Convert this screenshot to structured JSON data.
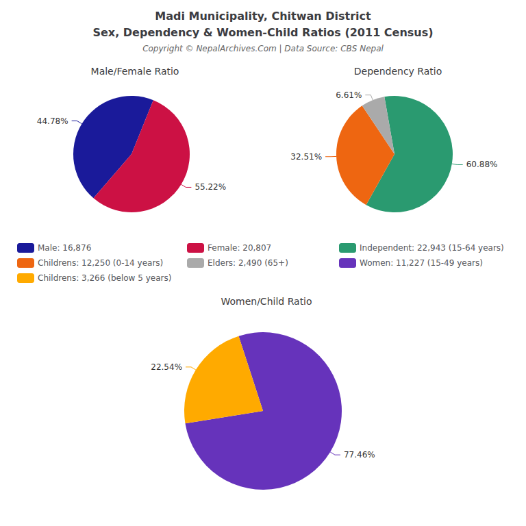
{
  "title": "Madi Municipality, Chitwan District",
  "subtitle": "Sex, Dependency & Women-Child Ratios (2011 Census)",
  "annotations": [
    "Copyright © NepalArchives.Com | Data Source: CBS Nepal"
  ],
  "chart_data": [
    {
      "type": "pie",
      "title": "Male/Female Ratio",
      "categories": [
        "Male: 16,876",
        "Female: 20,807"
      ],
      "values": [
        44.78,
        55.22
      ],
      "value_labels": [
        "44.78%",
        "55.22%"
      ],
      "colors": [
        "#1a1a9a",
        "#cc1144"
      ],
      "data_labels": true,
      "legend": "bottom"
    },
    {
      "type": "pie",
      "title": "Dependency Ratio",
      "categories": [
        "Independent: 22,943 (15-64 years)",
        "Childrens: 12,250 (0-14 years)",
        "Elders: 2,490 (65+)"
      ],
      "values": [
        60.88,
        32.51,
        6.61
      ],
      "value_labels": [
        "60.88%",
        "32.51%",
        "6.61%"
      ],
      "colors": [
        "#2a9a70",
        "#ee6611",
        "#aaaaaa"
      ],
      "data_labels": true,
      "legend": "bottom"
    },
    {
      "type": "pie",
      "title": "Women/Child Ratio",
      "categories": [
        "Women: 11,227 (15-49 years)",
        "Childrens: 3,266 (below 5 years)"
      ],
      "values": [
        77.46,
        22.54
      ],
      "value_labels": [
        "77.46%",
        "22.54%"
      ],
      "colors": [
        "#6633bb",
        "#ffaa00"
      ],
      "data_labels": true,
      "legend": "top"
    }
  ]
}
